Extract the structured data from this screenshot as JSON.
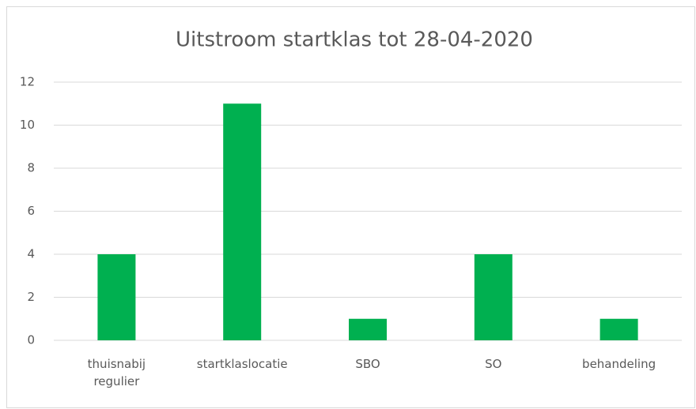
{
  "chart_data": {
    "type": "bar",
    "title": "Uitstroom startklas tot 28-04-2020",
    "categories": [
      "thuisnabij regulier",
      "startklaslocatie",
      "SBO",
      "SO",
      "behandeling"
    ],
    "values": [
      4,
      11,
      1,
      4,
      1
    ],
    "color": "#00b050",
    "ylim": [
      0,
      12
    ],
    "yticks": [
      0,
      2,
      4,
      6,
      8,
      10,
      12
    ],
    "grid": true
  }
}
